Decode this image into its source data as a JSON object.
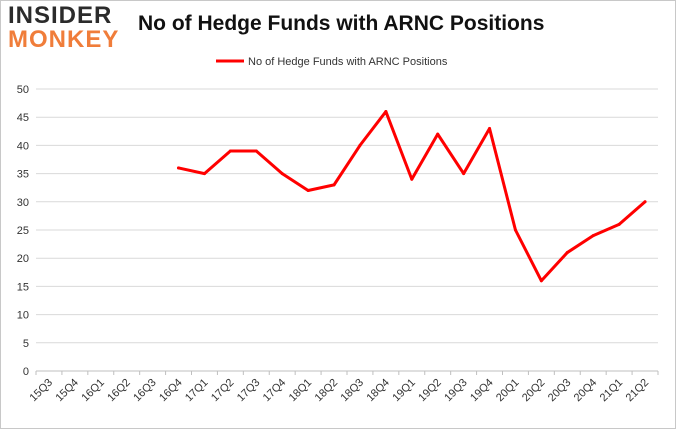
{
  "branding": {
    "logo_line1": "INSIDER",
    "logo_line2": "MONKEY"
  },
  "chart_data": {
    "type": "line",
    "title": "No of Hedge Funds with ARNC Positions",
    "xlabel": "",
    "ylabel": "",
    "categories": [
      "15Q3",
      "15Q4",
      "16Q1",
      "16Q2",
      "16Q3",
      "16Q4",
      "17Q1",
      "17Q2",
      "17Q3",
      "17Q4",
      "18Q1",
      "18Q2",
      "18Q3",
      "18Q4",
      "19Q1",
      "19Q2",
      "19Q3",
      "19Q4",
      "20Q1",
      "20Q2",
      "20Q3",
      "20Q4",
      "21Q1",
      "21Q2"
    ],
    "series": [
      {
        "name": "No of Hedge Funds with ARNC Positions",
        "color": "#ff0000",
        "values": [
          null,
          null,
          null,
          null,
          null,
          36,
          35,
          39,
          39,
          35,
          32,
          33,
          40,
          46,
          34,
          42,
          35,
          43,
          25,
          16,
          21,
          24,
          26,
          30
        ]
      }
    ],
    "ylim": [
      0,
      50
    ],
    "yticks": [
      0,
      5,
      10,
      15,
      20,
      25,
      30,
      35,
      40,
      45,
      50
    ],
    "grid": true,
    "legend_position": "top-center"
  }
}
